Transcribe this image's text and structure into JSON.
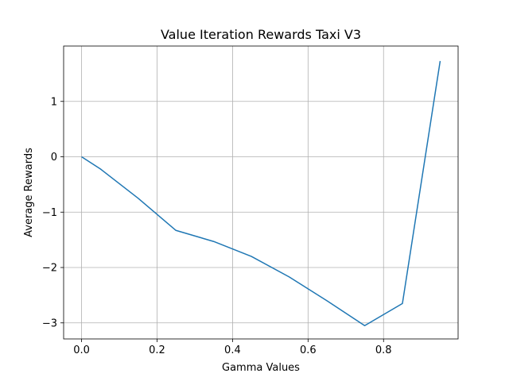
{
  "chart_data": {
    "type": "line",
    "title": "Value Iteration Rewards Taxi V3",
    "xlabel": "Gamma Values",
    "ylabel": "Average Rewards",
    "xlim": [
      -0.0475,
      0.9975
    ],
    "ylim": [
      -3.29,
      2.0
    ],
    "grid": true,
    "x_ticks": [
      {
        "value": 0.0,
        "label": "0.0"
      },
      {
        "value": 0.2,
        "label": "0.2"
      },
      {
        "value": 0.4,
        "label": "0.4"
      },
      {
        "value": 0.6,
        "label": "0.6"
      },
      {
        "value": 0.8,
        "label": "0.8"
      }
    ],
    "y_ticks": [
      {
        "value": -3,
        "label": "−3"
      },
      {
        "value": -2,
        "label": "−2"
      },
      {
        "value": -1,
        "label": "−1"
      },
      {
        "value": 0,
        "label": "0"
      },
      {
        "value": 1,
        "label": "1"
      }
    ],
    "series": [
      {
        "color": "#1f77b4",
        "x": [
          0.0,
          0.05,
          0.15,
          0.25,
          0.35,
          0.45,
          0.55,
          0.65,
          0.75,
          0.85,
          0.95
        ],
        "y": [
          0.0,
          -0.22,
          -0.75,
          -1.33,
          -1.53,
          -1.8,
          -2.17,
          -2.6,
          -3.05,
          -2.65,
          1.73
        ]
      }
    ]
  }
}
